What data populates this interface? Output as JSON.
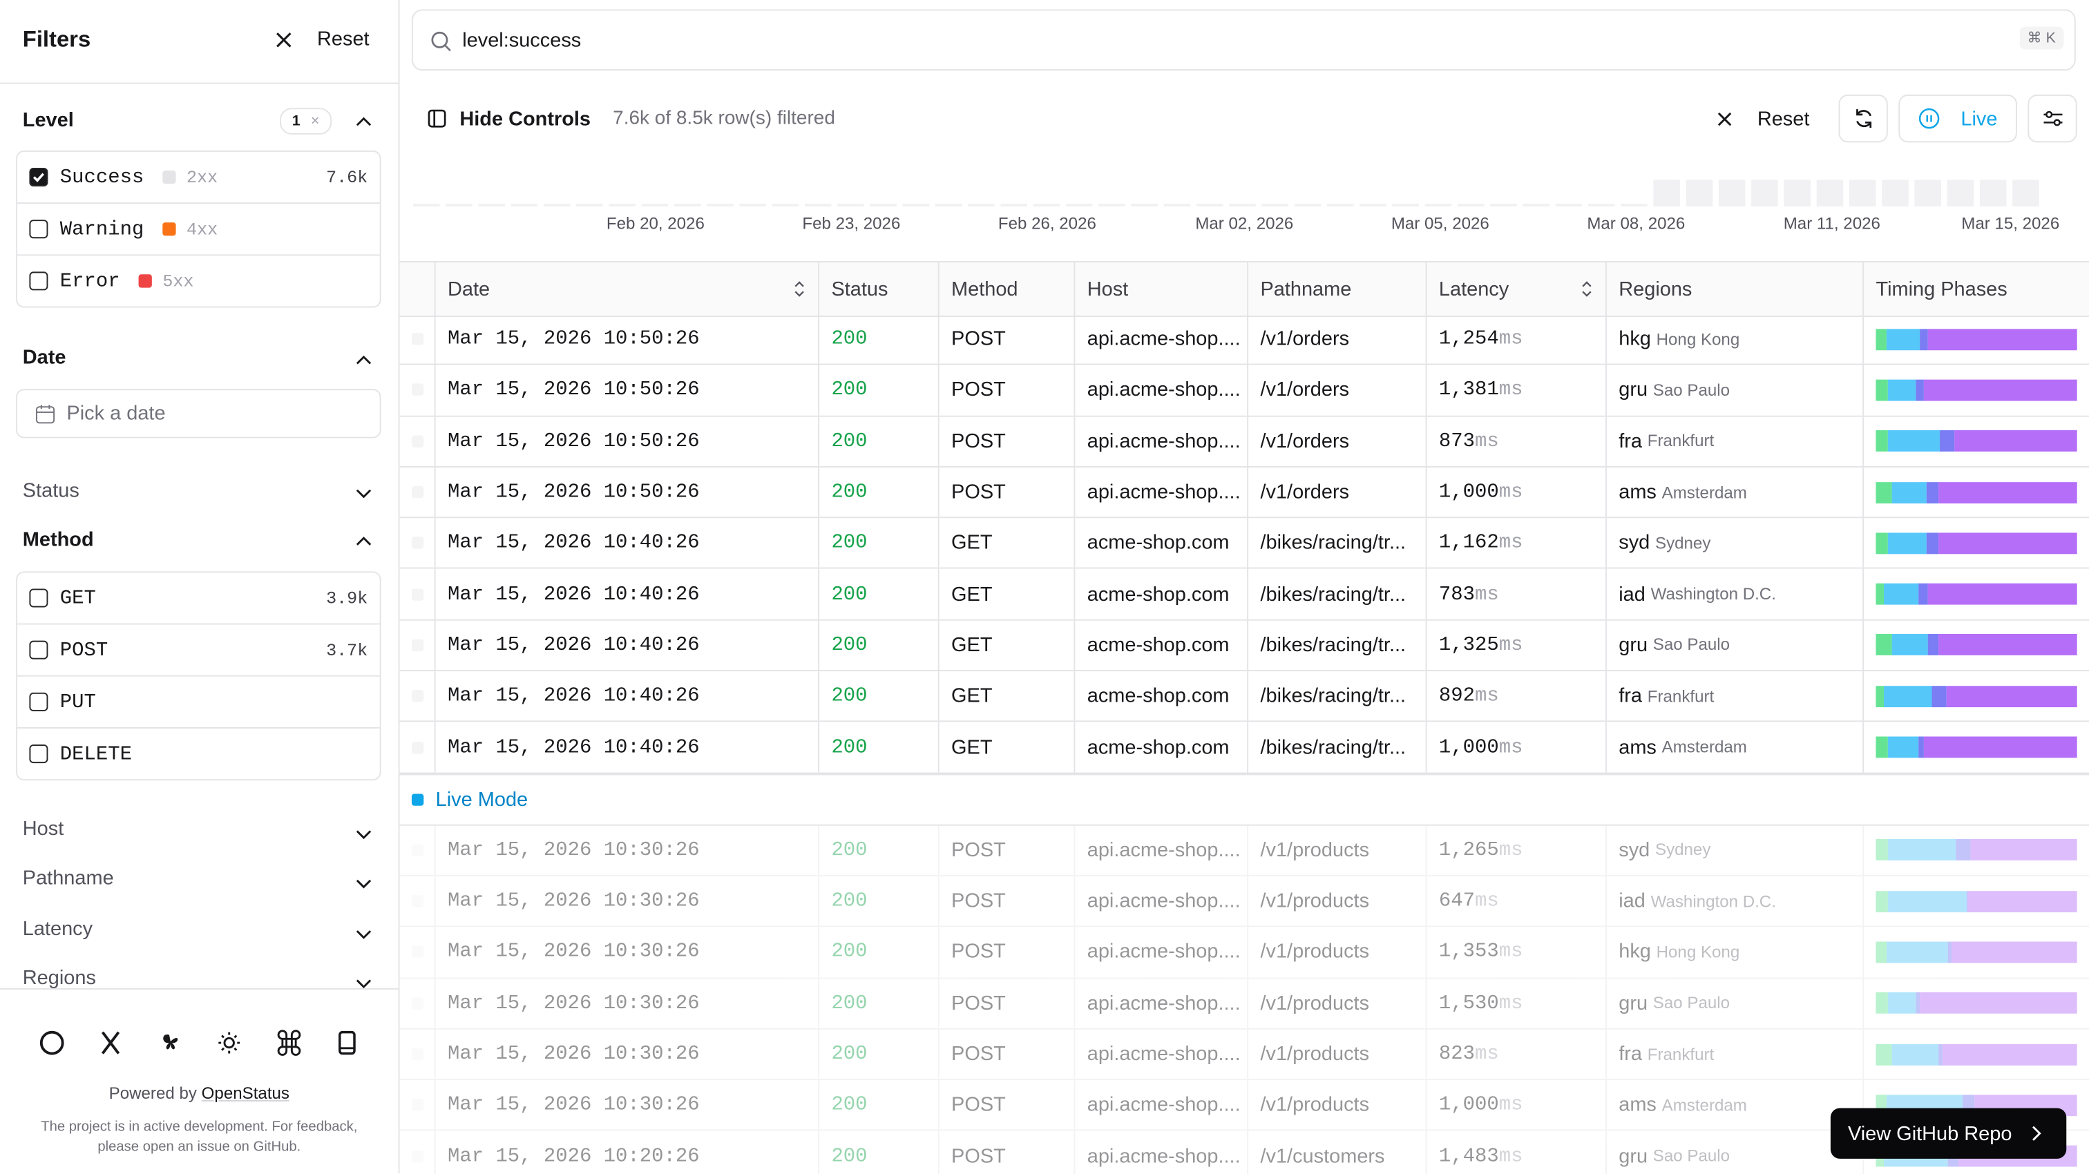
{
  "sidebar": {
    "title": "Filters",
    "reset": "Reset",
    "level": {
      "label": "Level",
      "count": 1,
      "options": [
        {
          "name": "Success",
          "code": "2xx",
          "count": "7.6k",
          "checked": true,
          "color": "#e4e4e7"
        },
        {
          "name": "Warning",
          "code": "4xx",
          "checked": false,
          "color": "#f97316"
        },
        {
          "name": "Error",
          "code": "5xx",
          "checked": false,
          "color": "#ef4444"
        }
      ]
    },
    "date": {
      "label": "Date",
      "placeholder": "Pick a date"
    },
    "status": "Status",
    "method": {
      "label": "Method",
      "options": [
        {
          "name": "GET",
          "count": "3.9k"
        },
        {
          "name": "POST",
          "count": "3.7k"
        },
        {
          "name": "PUT"
        },
        {
          "name": "DELETE"
        }
      ]
    },
    "collapsed": [
      "Host",
      "Pathname",
      "Latency",
      "Regions"
    ],
    "powered": "Powered by",
    "brand": "OpenStatus",
    "note": "The project is in active development. For feedback, please open an issue on GitHub."
  },
  "search": {
    "query": "level:success",
    "shortcut": "⌘ K"
  },
  "toolbar": {
    "hide": "Hide Controls",
    "summary": "7.6k of 8.5k row(s) filtered",
    "reset": "Reset",
    "live": "Live"
  },
  "timeline": {
    "labels": [
      "Feb 20, 2026",
      "Feb 23, 2026",
      "Feb 26, 2026",
      "Mar 02, 2026",
      "Mar 05, 2026",
      "Mar 08, 2026",
      "Mar 11, 2026",
      "Mar 15, 2026"
    ],
    "counts": [
      1,
      1,
      1,
      1,
      1,
      1,
      1,
      1,
      1,
      1,
      1,
      1,
      1,
      1,
      1,
      1,
      1,
      1,
      1,
      1,
      1,
      1,
      1,
      1,
      1,
      1,
      1,
      1,
      1,
      1,
      1,
      1,
      1,
      1,
      1,
      1,
      1,
      1,
      10,
      10,
      10,
      10,
      10,
      10,
      10,
      10,
      10,
      10,
      10,
      10
    ]
  },
  "table": {
    "columns": [
      "Date",
      "Status",
      "Method",
      "Host",
      "Pathname",
      "Latency",
      "Regions",
      "Timing Phases"
    ],
    "unit": "ms",
    "live_label": "Live Mode",
    "rows": [
      {
        "date": "Mar 15, 2026 10:50:26",
        "status": 200,
        "method": "POST",
        "host": "api.acme-shop....",
        "path": "/v1/orders",
        "latency": "1,254",
        "region": "hkg",
        "city": "Hong Kong"
      },
      {
        "date": "Mar 15, 2026 10:50:26",
        "status": 200,
        "method": "POST",
        "host": "api.acme-shop....",
        "path": "/v1/orders",
        "latency": "1,381",
        "region": "gru",
        "city": "Sao Paulo"
      },
      {
        "date": "Mar 15, 2026 10:50:26",
        "status": 200,
        "method": "POST",
        "host": "api.acme-shop....",
        "path": "/v1/orders",
        "latency": "873",
        "region": "fra",
        "city": "Frankfurt"
      },
      {
        "date": "Mar 15, 2026 10:50:26",
        "status": 200,
        "method": "POST",
        "host": "api.acme-shop....",
        "path": "/v1/orders",
        "latency": "1,000",
        "region": "ams",
        "city": "Amsterdam"
      },
      {
        "date": "Mar 15, 2026 10:40:26",
        "status": 200,
        "method": "GET",
        "host": "acme-shop.com",
        "path": "/bikes/racing/tr...",
        "latency": "1,162",
        "region": "syd",
        "city": "Sydney"
      },
      {
        "date": "Mar 15, 2026 10:40:26",
        "status": 200,
        "method": "GET",
        "host": "acme-shop.com",
        "path": "/bikes/racing/tr...",
        "latency": "783",
        "region": "iad",
        "city": "Washington D.C."
      },
      {
        "date": "Mar 15, 2026 10:40:26",
        "status": 200,
        "method": "GET",
        "host": "acme-shop.com",
        "path": "/bikes/racing/tr...",
        "latency": "1,325",
        "region": "gru",
        "city": "Sao Paulo"
      },
      {
        "date": "Mar 15, 2026 10:40:26",
        "status": 200,
        "method": "GET",
        "host": "acme-shop.com",
        "path": "/bikes/racing/tr...",
        "latency": "892",
        "region": "fra",
        "city": "Frankfurt"
      },
      {
        "date": "Mar 15, 2026 10:40:26",
        "status": 200,
        "method": "GET",
        "host": "acme-shop.com",
        "path": "/bikes/racing/tr...",
        "latency": "1,000",
        "region": "ams",
        "city": "Amsterdam"
      }
    ],
    "older_rows": [
      {
        "date": "Mar 15, 2026 10:30:26",
        "status": 200,
        "method": "POST",
        "host": "api.acme-shop....",
        "path": "/v1/products",
        "latency": "1,265",
        "region": "syd",
        "city": "Sydney"
      },
      {
        "date": "Mar 15, 2026 10:30:26",
        "status": 200,
        "method": "POST",
        "host": "api.acme-shop....",
        "path": "/v1/products",
        "latency": "647",
        "region": "iad",
        "city": "Washington D.C."
      },
      {
        "date": "Mar 15, 2026 10:30:26",
        "status": 200,
        "method": "POST",
        "host": "api.acme-shop....",
        "path": "/v1/products",
        "latency": "1,353",
        "region": "hkg",
        "city": "Hong Kong"
      },
      {
        "date": "Mar 15, 2026 10:30:26",
        "status": 200,
        "method": "POST",
        "host": "api.acme-shop....",
        "path": "/v1/products",
        "latency": "1,530",
        "region": "gru",
        "city": "Sao Paulo"
      },
      {
        "date": "Mar 15, 2026 10:30:26",
        "status": 200,
        "method": "POST",
        "host": "api.acme-shop....",
        "path": "/v1/products",
        "latency": "823",
        "region": "fra",
        "city": "Frankfurt"
      },
      {
        "date": "Mar 15, 2026 10:30:26",
        "status": 200,
        "method": "POST",
        "host": "api.acme-shop....",
        "path": "/v1/products",
        "latency": "1,000",
        "region": "ams",
        "city": "Amsterdam"
      },
      {
        "date": "Mar 15, 2026 10:20:26",
        "status": 200,
        "method": "POST",
        "host": "api.acme-shop....",
        "path": "/v1/customers",
        "latency": "1,483",
        "region": "gru",
        "city": "Sao Paulo"
      }
    ]
  },
  "cta": "View GitHub Repo"
}
